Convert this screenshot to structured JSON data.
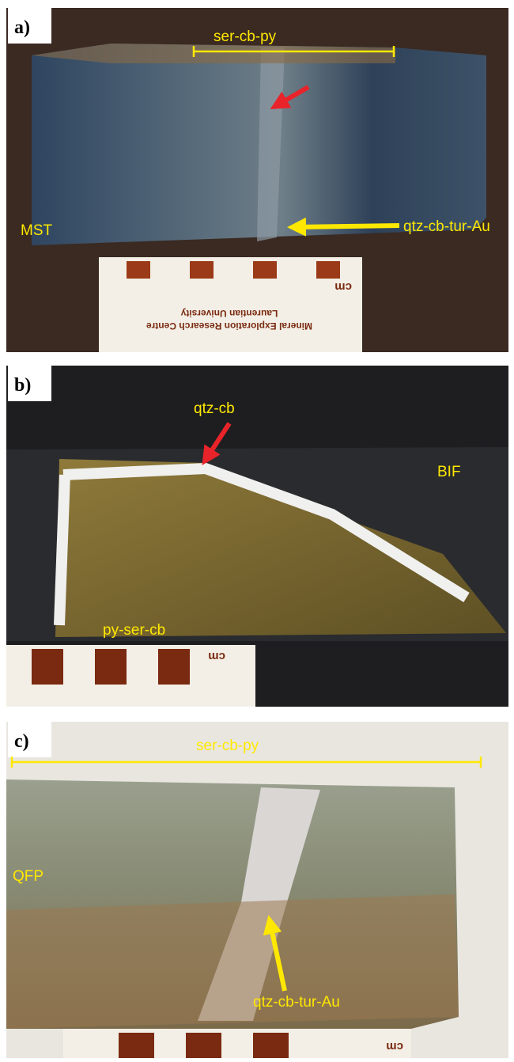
{
  "panels": [
    {
      "label": "a)",
      "bracket_label": "ser-cb-py",
      "host_label": "MST",
      "vein_label": "qtz-cb-tur-Au",
      "scale": {
        "unit": "cm",
        "caption": [
          "Mineral Exploration Research Centre",
          "Laurentian University"
        ]
      }
    },
    {
      "label": "b)",
      "vein_label": "qtz-cb",
      "host_label": "BIF",
      "alteration_label": "py-ser-cb",
      "scale": {
        "unit": "cm"
      }
    },
    {
      "label": "c)",
      "bracket_label": "ser-cb-py",
      "host_label": "QFP",
      "vein_label": "qtz-cb-tur-Au",
      "scale": {
        "unit": "cm"
      }
    }
  ]
}
